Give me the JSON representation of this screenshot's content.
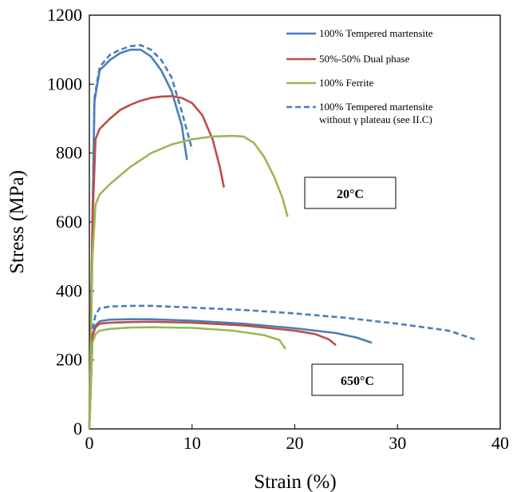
{
  "chart_data": {
    "type": "line",
    "xlabel": "Strain (%)",
    "ylabel": "Stress (MPa)",
    "xlim": [
      0,
      40
    ],
    "ylim": [
      0,
      1200
    ],
    "xticks": [
      0,
      10,
      20,
      30,
      40
    ],
    "yticks": [
      0,
      200,
      400,
      600,
      800,
      1000,
      1200
    ],
    "grid": false,
    "legend_position": "top-right",
    "legend": [
      {
        "name": "100% Tempered martensite",
        "color": "#4a7ebb",
        "dash": false
      },
      {
        "name": "50%-50% Dual phase",
        "color": "#be4b48",
        "dash": false
      },
      {
        "name": "100% Ferrite",
        "color": "#98b954",
        "dash": false
      },
      {
        "name": "100% Tempered martensite without γ plateau (see II.C)",
        "color": "#4a7ebb",
        "dash": true
      }
    ],
    "annotations": [
      "20°C",
      "650°C"
    ],
    "series": [
      {
        "legend_index": 0,
        "condition": "20°C",
        "color": "#4a7ebb",
        "dash": false,
        "points": [
          [
            0,
            0
          ],
          [
            0.3,
            600
          ],
          [
            0.5,
            950
          ],
          [
            1,
            1040
          ],
          [
            2,
            1070
          ],
          [
            3,
            1090
          ],
          [
            4,
            1100
          ],
          [
            5,
            1100
          ],
          [
            6,
            1080
          ],
          [
            7,
            1040
          ],
          [
            8,
            980
          ],
          [
            9,
            880
          ],
          [
            9.5,
            780
          ]
        ]
      },
      {
        "legend_index": 3,
        "condition": "20°C",
        "color": "#4a7ebb",
        "dash": true,
        "points": [
          [
            0.3,
            600
          ],
          [
            0.5,
            960
          ],
          [
            1,
            1050
          ],
          [
            2,
            1085
          ],
          [
            3,
            1100
          ],
          [
            4,
            1110
          ],
          [
            5,
            1113
          ],
          [
            6,
            1100
          ],
          [
            7,
            1070
          ],
          [
            8,
            1020
          ],
          [
            9,
            920
          ],
          [
            10,
            810
          ]
        ]
      },
      {
        "legend_index": 1,
        "condition": "20°C",
        "color": "#be4b48",
        "dash": false,
        "points": [
          [
            0,
            0
          ],
          [
            0.3,
            600
          ],
          [
            0.6,
            840
          ],
          [
            1,
            870
          ],
          [
            2,
            900
          ],
          [
            3,
            925
          ],
          [
            4,
            940
          ],
          [
            5,
            952
          ],
          [
            6,
            960
          ],
          [
            7,
            964
          ],
          [
            8,
            965
          ],
          [
            9,
            960
          ],
          [
            10,
            945
          ],
          [
            11,
            910
          ],
          [
            12,
            840
          ],
          [
            12.7,
            760
          ],
          [
            13.1,
            700
          ]
        ]
      },
      {
        "legend_index": 2,
        "condition": "20°C",
        "color": "#98b954",
        "dash": false,
        "points": [
          [
            0,
            0
          ],
          [
            0.3,
            500
          ],
          [
            0.6,
            650
          ],
          [
            1,
            680
          ],
          [
            2,
            710
          ],
          [
            4,
            760
          ],
          [
            6,
            800
          ],
          [
            8,
            825
          ],
          [
            10,
            840
          ],
          [
            12,
            848
          ],
          [
            14,
            850
          ],
          [
            15,
            848
          ],
          [
            16,
            830
          ],
          [
            17,
            790
          ],
          [
            18,
            730
          ],
          [
            18.8,
            670
          ],
          [
            19.3,
            615
          ]
        ]
      },
      {
        "legend_index": 0,
        "condition": "650°C",
        "color": "#4a7ebb",
        "dash": false,
        "points": [
          [
            0,
            0
          ],
          [
            0.3,
            270
          ],
          [
            0.6,
            300
          ],
          [
            1,
            312
          ],
          [
            2,
            317
          ],
          [
            4,
            318
          ],
          [
            6,
            318
          ],
          [
            10,
            314
          ],
          [
            15,
            305
          ],
          [
            20,
            292
          ],
          [
            24,
            278
          ],
          [
            26,
            265
          ],
          [
            27.5,
            250
          ]
        ]
      },
      {
        "legend_index": 3,
        "condition": "650°C",
        "color": "#4a7ebb",
        "dash": true,
        "points": [
          [
            0.3,
            290
          ],
          [
            0.6,
            330
          ],
          [
            1,
            350
          ],
          [
            2,
            355
          ],
          [
            4,
            357
          ],
          [
            6,
            357
          ],
          [
            10,
            352
          ],
          [
            15,
            345
          ],
          [
            20,
            335
          ],
          [
            25,
            322
          ],
          [
            30,
            305
          ],
          [
            35,
            285
          ],
          [
            37.5,
            260
          ]
        ]
      },
      {
        "legend_index": 1,
        "condition": "650°C",
        "color": "#be4b48",
        "dash": false,
        "points": [
          [
            0,
            0
          ],
          [
            0.3,
            270
          ],
          [
            0.6,
            295
          ],
          [
            1,
            305
          ],
          [
            2,
            308
          ],
          [
            4,
            310
          ],
          [
            6,
            311
          ],
          [
            10,
            308
          ],
          [
            15,
            300
          ],
          [
            20,
            285
          ],
          [
            22,
            275
          ],
          [
            23.3,
            260
          ],
          [
            24,
            243
          ]
        ]
      },
      {
        "legend_index": 2,
        "condition": "650°C",
        "color": "#98b954",
        "dash": false,
        "points": [
          [
            0,
            0
          ],
          [
            0.3,
            250
          ],
          [
            0.6,
            275
          ],
          [
            1,
            285
          ],
          [
            2,
            290
          ],
          [
            4,
            294
          ],
          [
            6,
            295
          ],
          [
            10,
            293
          ],
          [
            14,
            285
          ],
          [
            17,
            272
          ],
          [
            18.5,
            258
          ],
          [
            19.1,
            232
          ]
        ]
      }
    ]
  }
}
